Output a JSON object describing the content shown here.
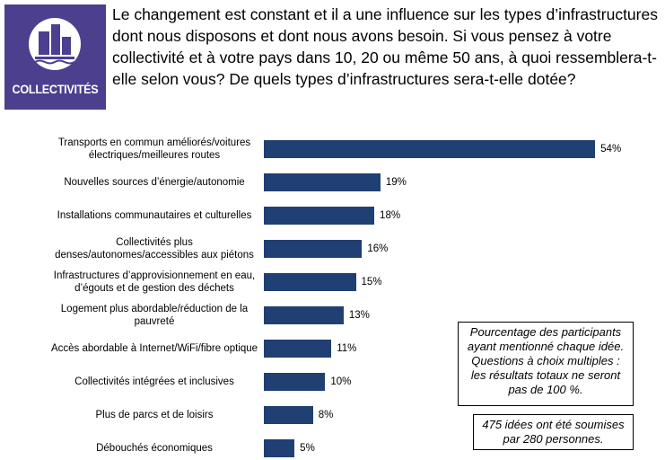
{
  "header": {
    "badge": "COLLECTIVITÉS",
    "question": "Le changement est constant et il a une influence sur les types d’infrastructures dont nous disposons et dont nous avons besoin. Si vous pensez à votre collectivité et à votre pays dans 10, 20 ou même 50 ans, à quoi ressemblera-t-elle selon vous? De quels types d’infrastructures sera-t-elle dotée?"
  },
  "chart_data": {
    "type": "barh",
    "categories": [
      "Transports en commun améliorés/voitures électriques/meilleures routes",
      "Nouvelles sources d’énergie/autonomie",
      "Installations communautaires et culturelles",
      "Collectivités plus denses/autonomes/accessibles aux piétons",
      "Infrastructures d’approvisionnement en eau, d’égouts et de gestion des déchets",
      "Logement plus abordable/réduction de la pauvreté",
      "Accès abordable à Internet/WiFi/fibre optique",
      "Collectivités intégrées et inclusives",
      "Plus de parcs et de loisirs",
      "Débouchés économiques"
    ],
    "values": [
      54,
      19,
      18,
      16,
      15,
      13,
      11,
      10,
      8,
      5
    ],
    "value_labels": [
      "54%",
      "19%",
      "18%",
      "16%",
      "15%",
      "13%",
      "11%",
      "10%",
      "8%",
      "5%"
    ],
    "color": "#203f73",
    "xlim": [
      0,
      55
    ],
    "annotations": [
      "Pourcentage des participants ayant mentionné chaque idée. Questions à choix multiples : les résultats totaux ne seront pas de 100 %.",
      "475 idées ont été soumises par 280 personnes."
    ]
  }
}
